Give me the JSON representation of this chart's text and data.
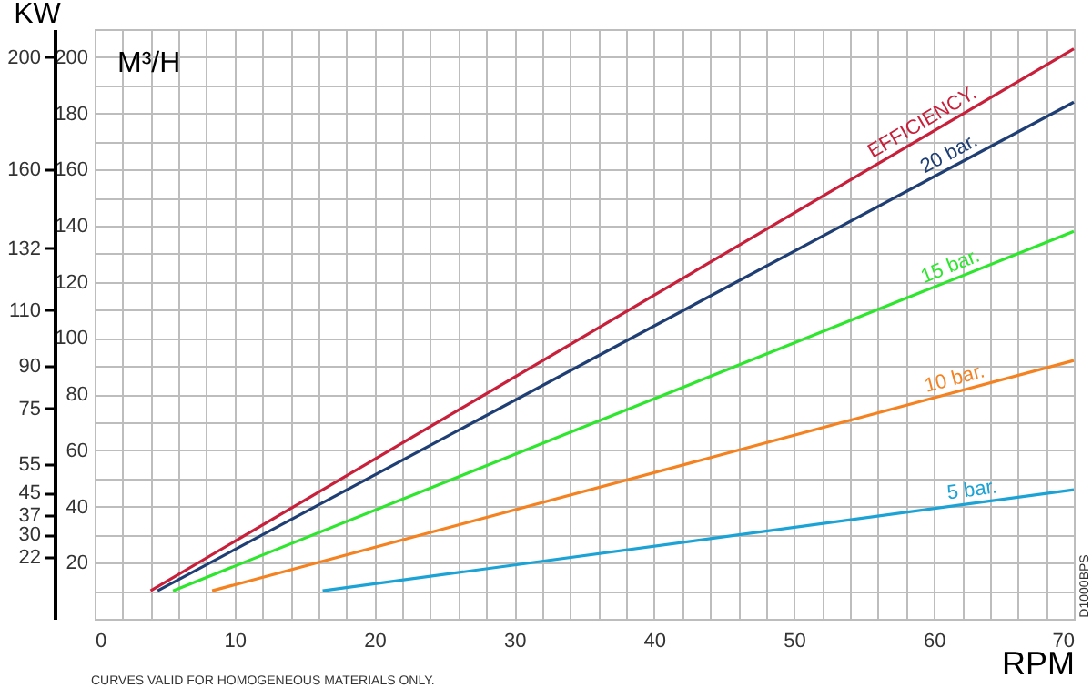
{
  "chart_data": {
    "type": "line",
    "xlabel": "RPM",
    "ylabel": "M³/H",
    "y2label": "KW",
    "annotations": [
      "CURVES VALID FOR HOMOGENEOUS MATERIALS ONLY.",
      "D1000BPS"
    ],
    "xlim": [
      0,
      70
    ],
    "ylim": [
      0,
      210
    ],
    "y2lim": [
      0,
      210
    ],
    "xticks": [
      0,
      {
        "value": 2,
        "label": null
      },
      {
        "value": 4,
        "label": null
      },
      {
        "value": 6,
        "label": null
      },
      {
        "value": 8,
        "label": null
      },
      10,
      {
        "value": 12,
        "label": null
      },
      {
        "value": 14,
        "label": null
      },
      {
        "value": 16,
        "label": null
      },
      {
        "value": 18,
        "label": null
      },
      20,
      {
        "value": 22,
        "label": null
      },
      {
        "value": 24,
        "label": null
      },
      {
        "value": 26,
        "label": null
      },
      {
        "value": 28,
        "label": null
      },
      30,
      {
        "value": 32,
        "label": null
      },
      {
        "value": 34,
        "label": null
      },
      {
        "value": 36,
        "label": null
      },
      {
        "value": 38,
        "label": null
      },
      40,
      {
        "value": 42,
        "label": null
      },
      {
        "value": 44,
        "label": null
      },
      {
        "value": 46,
        "label": null
      },
      {
        "value": 48,
        "label": null
      },
      50,
      {
        "value": 52,
        "label": null
      },
      {
        "value": 54,
        "label": null
      },
      {
        "value": 56,
        "label": null
      },
      {
        "value": 58,
        "label": null
      },
      60,
      {
        "value": 62,
        "label": null
      },
      {
        "value": 64,
        "label": null
      },
      {
        "value": 66,
        "label": null
      },
      {
        "value": 68,
        "label": null
      },
      70
    ],
    "yticks": [
      {
        "value": 10,
        "label": null
      },
      20,
      {
        "value": 30,
        "label": null
      },
      40,
      {
        "value": 50,
        "label": null
      },
      60,
      {
        "value": 70,
        "label": null
      },
      80,
      {
        "value": 90,
        "label": null
      },
      100,
      {
        "value": 110,
        "label": null
      },
      120,
      {
        "value": 130,
        "label": null
      },
      140,
      {
        "value": 150,
        "label": null
      },
      160,
      {
        "value": 170,
        "label": null
      },
      180,
      {
        "value": 190,
        "label": null
      },
      200
    ],
    "y2ticks": [
      22,
      30,
      37,
      45,
      55,
      75,
      90,
      110,
      132,
      160,
      200
    ],
    "grid": true,
    "marker": "none",
    "line_style": "solid",
    "series": [
      {
        "name": "EFFICIENCY.",
        "color": "#c8203a",
        "x": [
          4.0,
          70
        ],
        "values": [
          10,
          203
        ]
      },
      {
        "name": "20 bar.",
        "color": "#1f3f74",
        "x": [
          4.5,
          70
        ],
        "values": [
          10,
          184
        ]
      },
      {
        "name": "15 bar.",
        "color": "#2ee62e",
        "x": [
          5.6,
          70
        ],
        "values": [
          10,
          138
        ]
      },
      {
        "name": "10 bar.",
        "color": "#f58220",
        "x": [
          8.4,
          70
        ],
        "values": [
          10,
          92
        ]
      },
      {
        "name": "5 bar.",
        "color": "#1ba3d6",
        "x": [
          16.3,
          70
        ],
        "values": [
          10,
          46
        ]
      }
    ]
  }
}
